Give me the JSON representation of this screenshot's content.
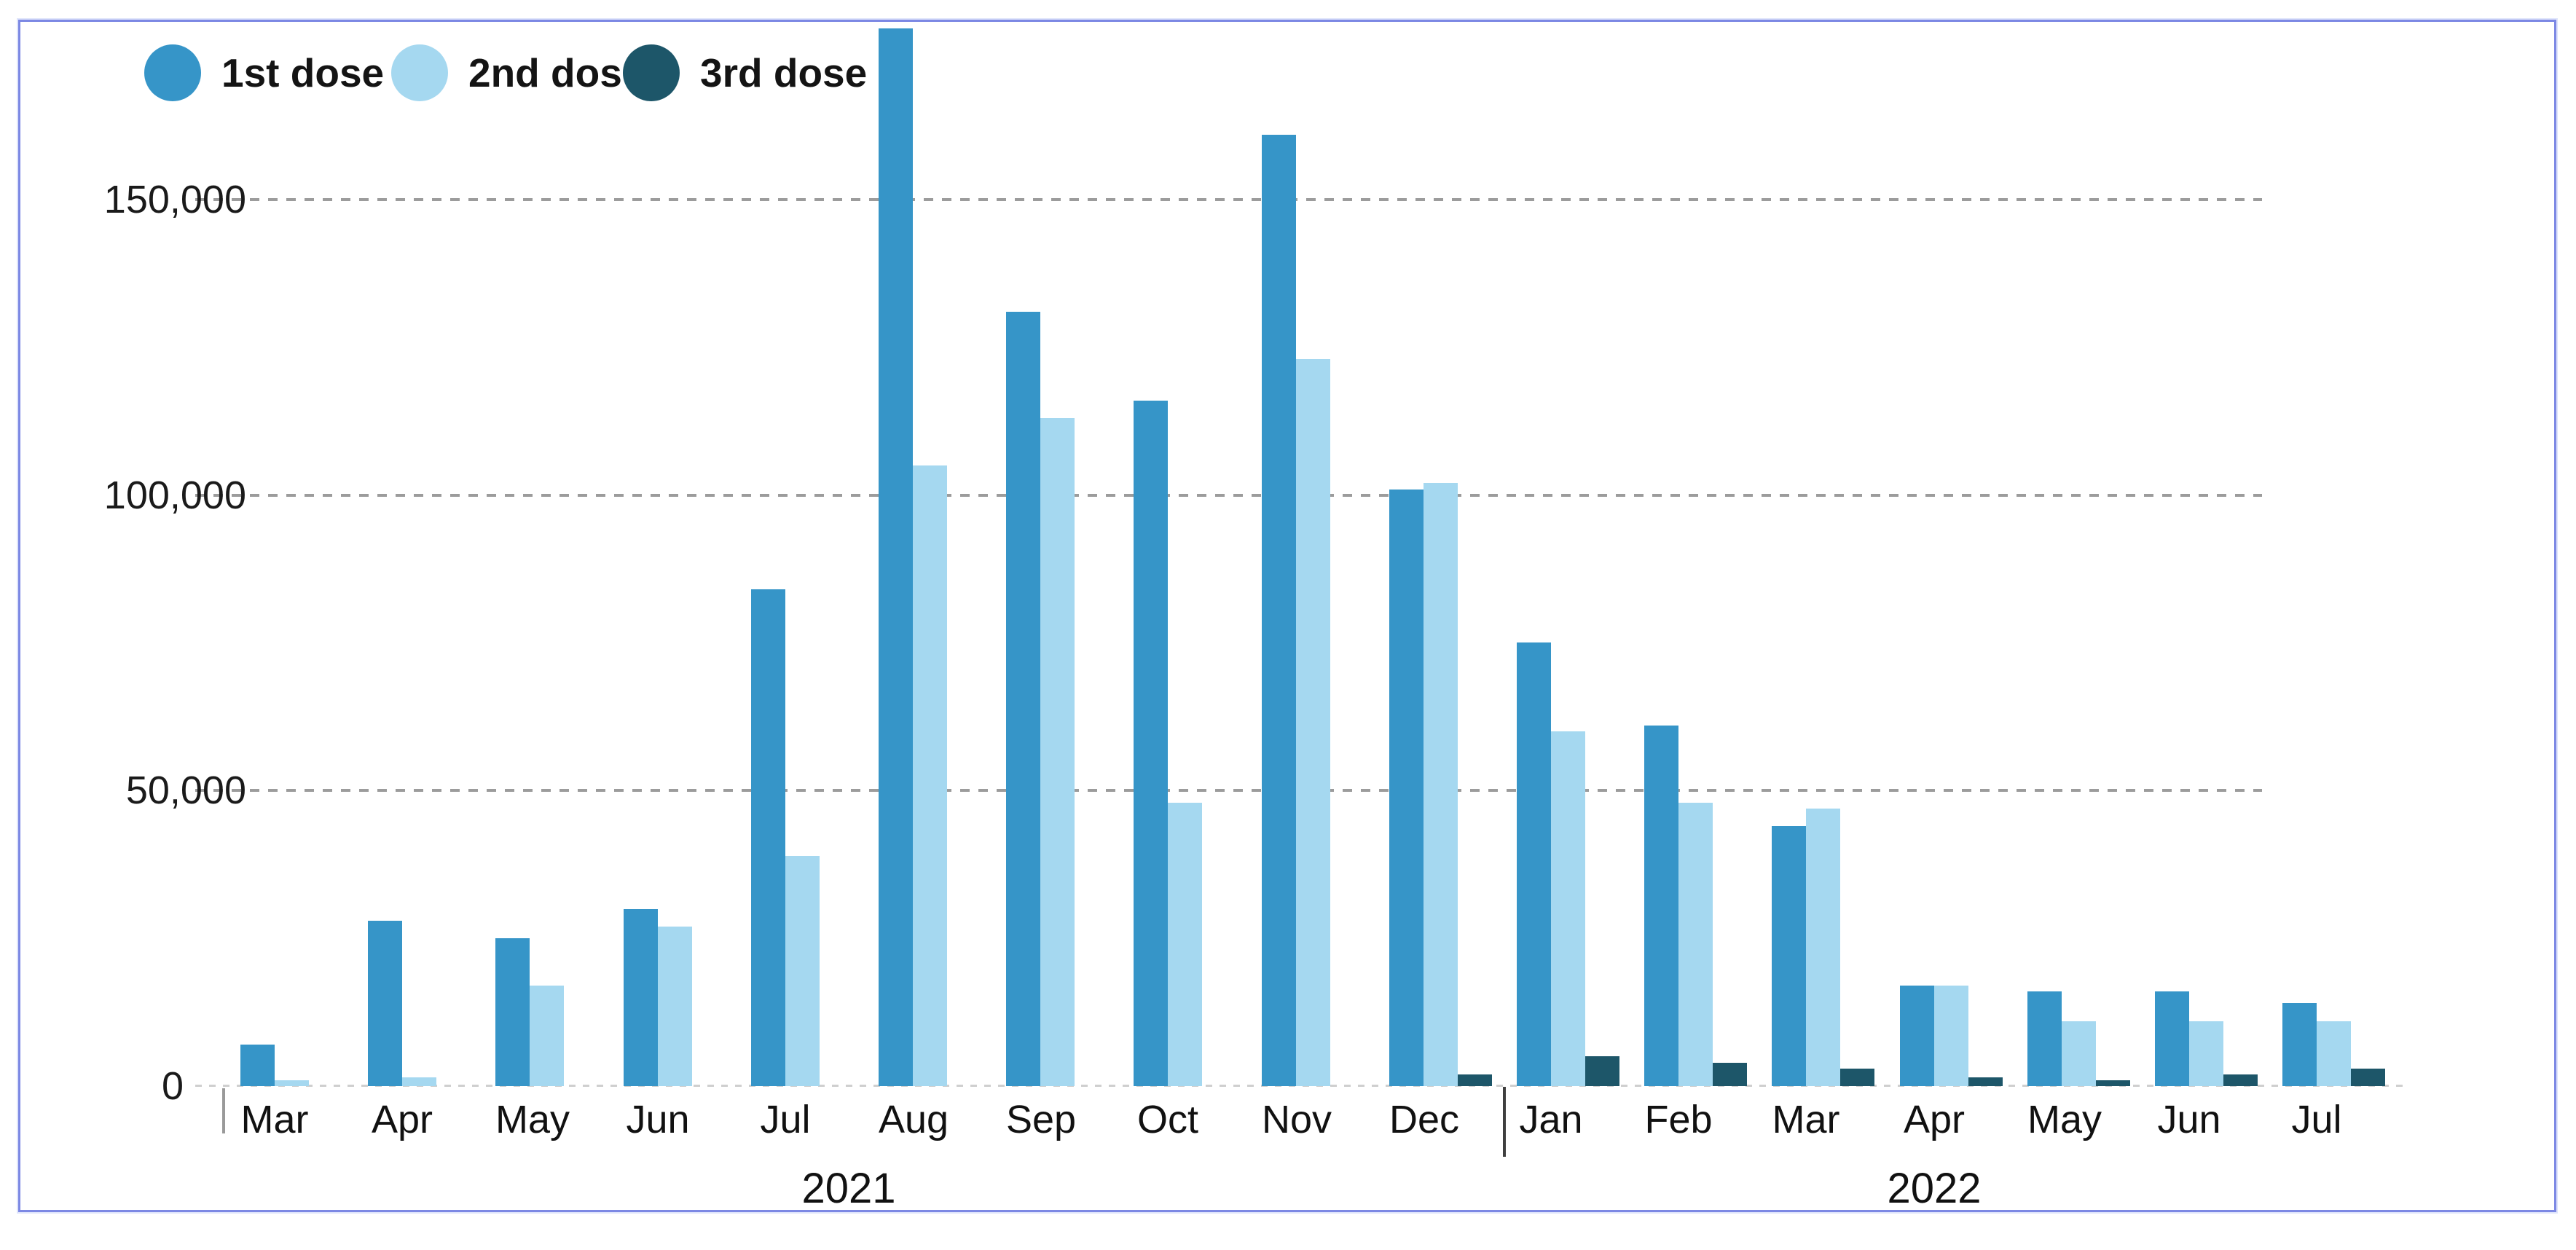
{
  "accent_colors": {
    "frame_border": "#7c88e4",
    "gridline": "#9c9c9c",
    "baseline": "#cfcfcf",
    "text": "#141414"
  },
  "y_axis": {
    "ticks": [
      {
        "label": "150,000",
        "value": 150000
      },
      {
        "label": "100,000",
        "value": 100000
      },
      {
        "label": "50,000",
        "value": 50000
      },
      {
        "label": "0",
        "value": 0
      }
    ]
  },
  "x_axis": {
    "years": [
      {
        "label": "2021"
      },
      {
        "label": "2022"
      }
    ]
  },
  "chart_data": {
    "type": "bar",
    "title": "",
    "legend_position": "top-left",
    "grid": "horizontal-dashed",
    "ylim": [
      0,
      185000
    ],
    "yticks": [
      0,
      50000,
      100000,
      150000
    ],
    "series": [
      {
        "name": "1st dose",
        "color": "#3695c8"
      },
      {
        "name": "2nd dose",
        "color": "#a5d8f0"
      },
      {
        "name": "3rd dose",
        "color": "#1d5669"
      }
    ],
    "groups": [
      {
        "year": "2021",
        "month": "Mar",
        "values": [
          7000,
          1000,
          0
        ]
      },
      {
        "year": "2021",
        "month": "Apr",
        "values": [
          28000,
          1500,
          0
        ]
      },
      {
        "year": "2021",
        "month": "May",
        "values": [
          25000,
          17000,
          0
        ]
      },
      {
        "year": "2021",
        "month": "Jun",
        "values": [
          30000,
          27000,
          0
        ]
      },
      {
        "year": "2021",
        "month": "Jul",
        "values": [
          84000,
          39000,
          0
        ]
      },
      {
        "year": "2021",
        "month": "Aug",
        "values": [
          179000,
          105000,
          0
        ]
      },
      {
        "year": "2021",
        "month": "Sep",
        "values": [
          131000,
          113000,
          0
        ]
      },
      {
        "year": "2021",
        "month": "Oct",
        "values": [
          116000,
          48000,
          0
        ]
      },
      {
        "year": "2021",
        "month": "Nov",
        "values": [
          161000,
          123000,
          0
        ]
      },
      {
        "year": "2021",
        "month": "Dec",
        "values": [
          101000,
          102000,
          2000
        ]
      },
      {
        "year": "2022",
        "month": "Jan",
        "values": [
          75000,
          60000,
          5000
        ]
      },
      {
        "year": "2022",
        "month": "Feb",
        "values": [
          61000,
          48000,
          4000
        ]
      },
      {
        "year": "2022",
        "month": "Mar",
        "values": [
          44000,
          47000,
          3000
        ]
      },
      {
        "year": "2022",
        "month": "Apr",
        "values": [
          17000,
          17000,
          1500
        ]
      },
      {
        "year": "2022",
        "month": "May",
        "values": [
          16000,
          11000,
          1000
        ]
      },
      {
        "year": "2022",
        "month": "Jun",
        "values": [
          16000,
          11000,
          2000
        ]
      },
      {
        "year": "2022",
        "month": "Jul",
        "values": [
          14000,
          11000,
          3000
        ]
      }
    ]
  }
}
